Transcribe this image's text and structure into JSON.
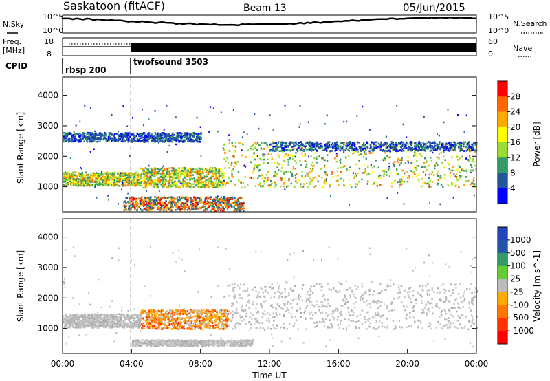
{
  "header": {
    "station": "Saskatoon (fitACF)",
    "beam": "Beam 13",
    "date": "05/Jun/2015"
  },
  "noise_panel": {
    "left_label": "N.Sky",
    "right_label": "N.Search",
    "left_ticks": [
      "10^5",
      "10^0"
    ],
    "right_ticks": [
      "10^5",
      "10^0"
    ]
  },
  "freq_panel": {
    "left_label_1": "Freq.",
    "left_label_2": "[MHz]",
    "right_label": "Nave",
    "left_ticks": [
      "18",
      "8"
    ],
    "right_ticks": [
      "60",
      "0"
    ]
  },
  "cpid_panel": {
    "label": "CPID",
    "modes": [
      {
        "name": "rbsp 200",
        "start_hour": 0
      },
      {
        "name": "twofsound 3503",
        "start_hour": 3.95
      }
    ]
  },
  "chart_data": [
    {
      "type": "heatmap",
      "name": "power",
      "xlabel": "",
      "ylabel": "Slant Range [km]",
      "xlim": [
        0,
        24
      ],
      "ylim": [
        180,
        4600
      ],
      "yticks": [
        1000,
        2000,
        3000,
        4000
      ],
      "colorbar_label": "Power [dB]",
      "colorbar_ticks": [
        "28",
        "24",
        "20",
        "16",
        "12",
        "8",
        "4"
      ],
      "colorbar_colors": [
        "#ff0000",
        "#ff6600",
        "#ffaa00",
        "#ffff00",
        "#99dd33",
        "#339966",
        "#225599",
        "#0000ff"
      ],
      "bands": [
        {
          "x": [
            0,
            4.5
          ],
          "y": [
            1050,
            1500
          ],
          "level": "mid"
        },
        {
          "x": [
            4.5,
            9.2
          ],
          "y": [
            1000,
            1650
          ],
          "level": "mid"
        },
        {
          "x": [
            9.2,
            24
          ],
          "y": [
            1000,
            2500
          ],
          "level": "mid"
        },
        {
          "x": [
            0,
            8
          ],
          "y": [
            2500,
            2800
          ],
          "level": "low"
        },
        {
          "x": [
            3.5,
            10.5
          ],
          "y": [
            250,
            700
          ],
          "level": "high"
        },
        {
          "x": [
            12,
            24
          ],
          "y": [
            2200,
            2500
          ],
          "level": "low"
        }
      ]
    },
    {
      "type": "heatmap",
      "name": "velocity",
      "xlabel": "Time UT",
      "ylabel": "Slant Range [km]",
      "xlim": [
        0,
        24
      ],
      "ylim": [
        180,
        4600
      ],
      "yticks": [
        1000,
        2000,
        3000,
        4000
      ],
      "xticks": [
        "00:00",
        "04:00",
        "08:00",
        "12:00",
        "16:00",
        "20:00",
        "00:00"
      ],
      "colorbar_label": "Velocity [m s^-1]",
      "colorbar_ticks": [
        "1000",
        "500",
        "100",
        "25",
        "-25",
        "-100",
        "-500",
        "-1000"
      ],
      "colorbar_colors": [
        "#2244bb",
        "#2255aa",
        "#339966",
        "#66cc33",
        "#bbbbbb",
        "#ffaa00",
        "#ff7700",
        "#ff3300",
        "#ff0000"
      ],
      "bands": [
        {
          "x": [
            0,
            4.5
          ],
          "y": [
            1050,
            1500
          ],
          "level": "ground"
        },
        {
          "x": [
            4.5,
            9.6
          ],
          "y": [
            1000,
            1650
          ],
          "level": "negative"
        },
        {
          "x": [
            9.6,
            24
          ],
          "y": [
            1000,
            2500
          ],
          "level": "ground"
        },
        {
          "x": [
            4.0,
            11.0
          ],
          "y": [
            450,
            650
          ],
          "level": "ground"
        }
      ]
    }
  ]
}
